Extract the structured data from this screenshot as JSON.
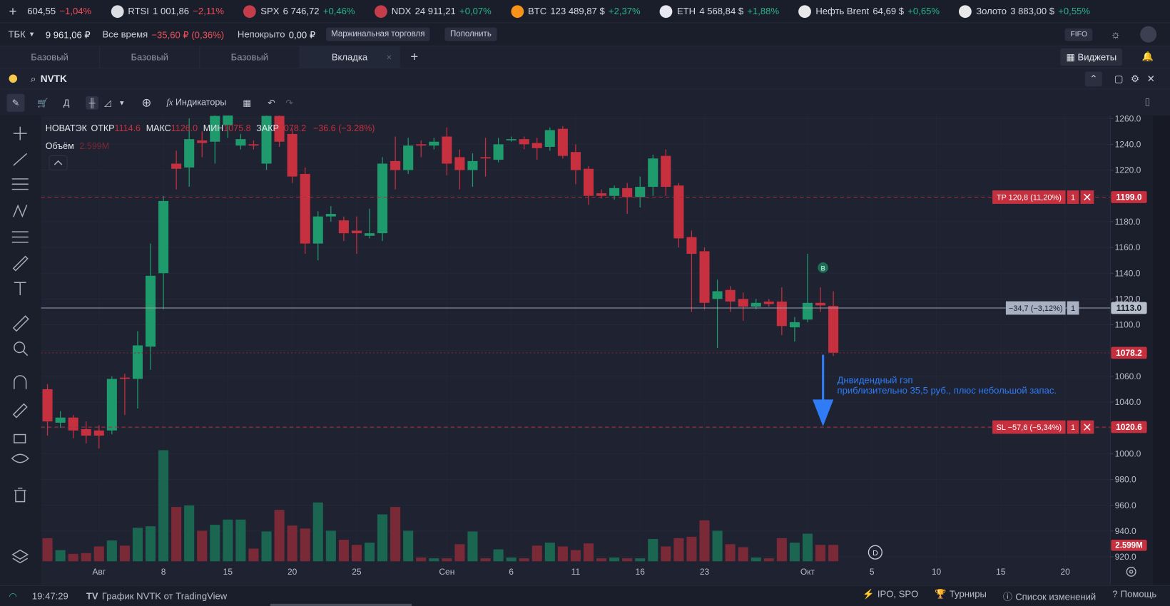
{
  "ticker_bar": {
    "items": [
      {
        "price": "604,55",
        "change": "−1,04%"
      },
      {
        "name": "RTSI",
        "price": "1 001,86",
        "change": "−2,11%"
      },
      {
        "name": "SPX",
        "price": "6 746,72",
        "change": "+0,46%"
      },
      {
        "name": "NDX",
        "price": "24 911,21",
        "change": "+0,07%"
      },
      {
        "name": "BTC",
        "price": "123 489,87 $",
        "change": "+2,37%"
      },
      {
        "name": "ETH",
        "price": "4 568,84 $",
        "change": "+1,88%"
      },
      {
        "name": "Нефть Brent",
        "price": "64,69 $",
        "change": "+0,65%"
      },
      {
        "name": "Золото",
        "price": "3 883,00 $",
        "change": "+0,55%"
      }
    ]
  },
  "account_bar": {
    "account": "ТБК",
    "balance": "9 961,06 ₽",
    "alltime_label": "Все время",
    "alltime_value": "−35,60 ₽ (0,36%)",
    "uncovered_label": "Непокрыто",
    "uncovered_value": "0,00 ₽",
    "margin_button": "Маржинальная торговля",
    "topup_button": "Пополнить",
    "fifo": "FIFO"
  },
  "tabs": {
    "items": [
      "Базовый",
      "Базовый",
      "Базовый",
      "Вкладка"
    ],
    "widgets_button": "Виджеты"
  },
  "instrument": {
    "symbol": "NVTK"
  },
  "toolbar": {
    "account_short": "Д",
    "indicators": "Индикаторы"
  },
  "chart_data": {
    "type": "candlestick",
    "title": "НОВАТЭК",
    "ohlc_names": [
      "ОТКР",
      "МАКС",
      "МИН",
      "ЗАКР"
    ],
    "last_bar_labels": [
      "1114.6",
      "1126.0",
      "1075.8",
      "1078.2"
    ],
    "change_label": "−36.6 (−3.28%)",
    "volume_name": "Объём",
    "volume_label": "2.599M",
    "up_color": "#1f9a6c",
    "down_color": "#c7303f",
    "volume_up_color": "#1b6650",
    "volume_down_color": "#7a2936",
    "grid": true,
    "categories": [
      null,
      null,
      null,
      null,
      "Авг",
      null,
      null,
      null,
      null,
      "8",
      null,
      null,
      null,
      null,
      "15",
      null,
      null,
      null,
      null,
      "20",
      null,
      null,
      null,
      null,
      "25",
      null,
      null,
      null,
      null,
      null,
      null,
      "Сен",
      null,
      null,
      null,
      null,
      "6",
      null,
      null,
      null,
      null,
      "11",
      null,
      null,
      null,
      null,
      "16",
      null,
      null,
      null,
      null,
      "23",
      null,
      null,
      null,
      null,
      null,
      null,
      null,
      "Окт",
      null,
      null,
      null,
      null,
      "5",
      null,
      null,
      null,
      null,
      "10",
      null,
      null,
      null,
      null,
      "15",
      null,
      null,
      null,
      null,
      "20",
      null,
      null,
      null
    ],
    "open": [
      1050,
      1024,
      1028,
      1019,
      1018,
      1018,
      1059,
      1058,
      1083,
      1140,
      1225,
      1222,
      1243,
      1242,
      1255,
      1239,
      1240,
      1225,
      1262,
      1248,
      1217,
      1163,
      1184,
      1181,
      1173,
      1169,
      1171,
      1227,
      1220,
      1240,
      1239,
      1246,
      1230,
      1220,
      1230,
      1228,
      1243,
      1244,
      1241,
      1238,
      1252,
      1234,
      1221,
      1202,
      1200,
      1206,
      1199,
      1207,
      1231,
      1208,
      1168,
      1157,
      1120,
      1127,
      1120,
      1114,
      1118,
      1118,
      1098,
      1104,
      1117,
      1114.6,
      null,
      null,
      null,
      null,
      null,
      null,
      null,
      null,
      null,
      null,
      null,
      null,
      null,
      null,
      null,
      null,
      null,
      null,
      null,
      null,
      null
    ],
    "high": [
      1054,
      1033,
      1030,
      1025,
      1022,
      1060,
      1062,
      1095,
      1163,
      1200,
      1235,
      1260,
      1250,
      1270,
      1275,
      1248,
      1243,
      1268,
      1268,
      1252,
      1222,
      1188,
      1192,
      1184,
      1184,
      1190,
      1230,
      1246,
      1245,
      1243,
      1245,
      1253,
      1236,
      1233,
      1245,
      1245,
      1246,
      1246,
      1245,
      1253,
      1254,
      1240,
      1223,
      1205,
      1208,
      1210,
      1215,
      1232,
      1236,
      1210,
      1173,
      1160,
      1135,
      1130,
      1125,
      1120,
      1120,
      1129,
      1106,
      1155,
      1129,
      1126.0,
      null,
      null,
      null,
      null,
      null,
      null,
      null,
      null,
      null,
      null,
      null,
      null,
      null,
      null,
      null,
      null,
      null,
      null,
      null,
      null,
      null
    ],
    "low": [
      1014,
      1020,
      1012,
      1008,
      1004,
      1015,
      1030,
      1035,
      1065,
      1112,
      1205,
      1207,
      1230,
      1225,
      1245,
      1236,
      1236,
      1220,
      1238,
      1210,
      1155,
      1150,
      1180,
      1165,
      1155,
      1167,
      1165,
      1205,
      1217,
      1230,
      1236,
      1216,
      1205,
      1207,
      1215,
      1226,
      1242,
      1236,
      1228,
      1235,
      1229,
      1209,
      1193,
      1198,
      1197,
      1186,
      1191,
      1200,
      1200,
      1160,
      1110,
      1112,
      1082,
      1110,
      1103,
      1112,
      1114,
      1092,
      1087,
      1102,
      1110,
      1075.8,
      null,
      null,
      null,
      null,
      null,
      null,
      null,
      null,
      null,
      null,
      null,
      null,
      null,
      null,
      null,
      null,
      null,
      null,
      null,
      null,
      null
    ],
    "close": [
      1025,
      1028,
      1018,
      1014,
      1014,
      1058,
      1058,
      1084,
      1138,
      1196,
      1221,
      1244,
      1241,
      1262,
      1265,
      1244,
      1239,
      1262,
      1242,
      1215,
      1163,
      1184,
      1186,
      1171,
      1171,
      1171,
      1225,
      1220,
      1239,
      1239,
      1242,
      1225,
      1220,
      1227,
      1229,
      1240,
      1244,
      1240,
      1237,
      1251,
      1231,
      1220,
      1200,
      1200,
      1206,
      1199,
      1207,
      1229,
      1207,
      1167,
      1155,
      1117,
      1126,
      1118,
      1114,
      1117,
      1116,
      1099,
      1102,
      1117,
      1115,
      1078.2,
      null,
      null,
      null,
      null,
      null,
      null,
      null,
      null,
      null,
      null,
      null,
      null,
      null,
      null,
      null,
      null,
      null,
      null,
      null,
      null,
      null
    ],
    "volume": [
      3.66,
      1.77,
      1.18,
      1.3,
      2.36,
      3.3,
      2.48,
      5.31,
      5.55,
      17.6,
      8.61,
      8.85,
      4.84,
      5.78,
      6.61,
      6.61,
      2.01,
      4.72,
      8.14,
      5.66,
      5.19,
      9.32,
      4.84,
      3.42,
      2.6,
      2.95,
      7.43,
      8.61,
      4.84,
      0.59,
      0.47,
      0.47,
      2.71,
      4.72,
      0.47,
      1.89,
      0.59,
      0.47,
      2.48,
      2.95,
      2.36,
      1.77,
      2.83,
      0.47,
      0.59,
      0.47,
      0.47,
      3.54,
      2.36,
      3.66,
      3.89,
      6.49,
      4.84,
      2.71,
      2.24,
      0.59,
      0.47,
      3.66,
      2.95,
      4.37,
      2.6,
      2.599,
      null,
      null,
      null,
      null,
      null,
      null,
      null,
      null,
      null,
      null,
      null,
      null,
      null,
      null,
      null,
      null,
      null,
      null,
      null,
      null,
      null
    ],
    "ylim": [
      900.9,
      1262.3
    ],
    "yticks": [
      {
        "value": 920,
        "label": "920.0"
      },
      {
        "value": 940,
        "label": "940.0"
      },
      {
        "value": 960,
        "label": "960.0"
      },
      {
        "value": 980,
        "label": "980.0"
      },
      {
        "value": 1000,
        "label": "1000.0"
      },
      {
        "value": 1020,
        "label": "1020.0"
      },
      {
        "value": 1040,
        "label": "1040.0"
      },
      {
        "value": 1060,
        "label": "1060.0"
      },
      {
        "value": 1080,
        "label": "1080.0"
      },
      {
        "value": 1100,
        "label": "1100.0"
      },
      {
        "value": 1120,
        "label": "1120.0"
      },
      {
        "value": 1140,
        "label": "1140.0"
      },
      {
        "value": 1160,
        "label": "1160.0"
      },
      {
        "value": 1180,
        "label": "1180.0"
      },
      {
        "value": 1200,
        "label": "1200.0"
      },
      {
        "value": 1220,
        "label": "1220.0"
      },
      {
        "value": 1240,
        "label": "1240.0"
      },
      {
        "value": 1260,
        "label": "1260.0"
      }
    ],
    "levels": [
      {
        "style": "tp",
        "tag": "TP 120,8 (11,20%)",
        "qty": 1,
        "value": 1199.0,
        "label": "1199.0"
      },
      {
        "style": "position",
        "tag": "−34,7 (−3,12%)",
        "qty": 1,
        "value": 1113.0,
        "label": "1113.0"
      },
      {
        "style": "sl",
        "tag": "SL −57,6 (−5,34%)",
        "qty": 1,
        "value": 1020.6,
        "label": "1020.6"
      },
      {
        "style": "last",
        "value": 1078.2,
        "label": "1078.2"
      }
    ],
    "annotation": [
      "Днвидендный гэп",
      "приблизительно 35,5 руб., плюс небольшой запас."
    ],
    "buy_marker": "B",
    "dividend_marker": "D"
  },
  "status_bar": {
    "time": "19:47:29",
    "source": "График NVTK от TradingView",
    "links": [
      "IPO, SPO",
      "Турниры",
      "Список изменений",
      "Помощь"
    ]
  }
}
